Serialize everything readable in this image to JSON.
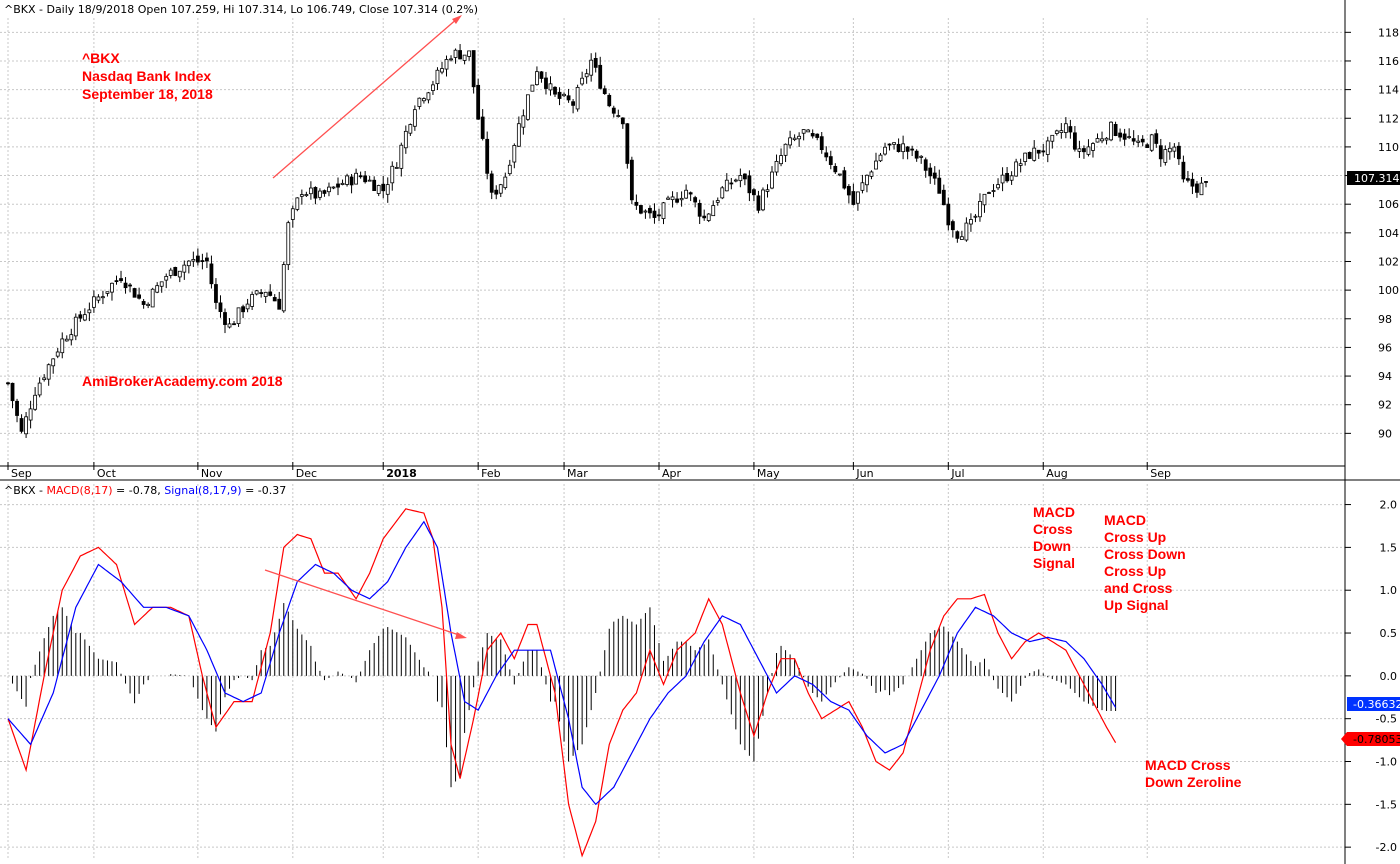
{
  "chart_data": [
    {
      "type": "candlestick",
      "header": "^BKX - Daily 18/9/2018 Open 107.259, Hi 107.314, Lo 106.749, Close 107.314 (0.2%)",
      "ylim": [
        88,
        119
      ],
      "yticks": [
        "90",
        "92",
        "94",
        "96",
        "98",
        "100",
        "102",
        "104",
        "106",
        "108",
        "110",
        "112",
        "114",
        "116",
        "118"
      ],
      "months": [
        {
          "label": "Sep",
          "day": 0
        },
        {
          "label": "Oct",
          "day": 19
        },
        {
          "label": "Nov",
          "day": 42
        },
        {
          "label": "Dec",
          "day": 63
        },
        {
          "label": "2018",
          "day": 83,
          "bold": true
        },
        {
          "label": "Feb",
          "day": 104
        },
        {
          "label": "Mar",
          "day": 123
        },
        {
          "label": "Apr",
          "day": 144
        },
        {
          "label": "May",
          "day": 165
        },
        {
          "label": "Jun",
          "day": 187
        },
        {
          "label": "Jul",
          "day": 208
        },
        {
          "label": "Aug",
          "day": 229
        },
        {
          "label": "Sep",
          "day": 252
        }
      ],
      "total_days": 266,
      "price_waypoints": [
        [
          0,
          93.5
        ],
        [
          3,
          90
        ],
        [
          6,
          93
        ],
        [
          12,
          96.5
        ],
        [
          17,
          98.5
        ],
        [
          21,
          99.8
        ],
        [
          25,
          101
        ],
        [
          30,
          99
        ],
        [
          35,
          101
        ],
        [
          40,
          102
        ],
        [
          44,
          102
        ],
        [
          46,
          99
        ],
        [
          49,
          97.5
        ],
        [
          53,
          99.2
        ],
        [
          57,
          100
        ],
        [
          60,
          99
        ],
        [
          62,
          104.5
        ],
        [
          65,
          107
        ],
        [
          69,
          106.5
        ],
        [
          74,
          107.5
        ],
        [
          78,
          108
        ],
        [
          83,
          107
        ],
        [
          86,
          109
        ],
        [
          90,
          113
        ],
        [
          94,
          114.5
        ],
        [
          98,
          116.5
        ],
        [
          102,
          116.5
        ],
        [
          104,
          112
        ],
        [
          107,
          106.5
        ],
        [
          110,
          108
        ],
        [
          113,
          111.5
        ],
        [
          117,
          115.5
        ],
        [
          121,
          113.5
        ],
        [
          125,
          113
        ],
        [
          129,
          116
        ],
        [
          133,
          113
        ],
        [
          136,
          112
        ],
        [
          138,
          106
        ],
        [
          143,
          105
        ],
        [
          146,
          106
        ],
        [
          150,
          107
        ],
        [
          154,
          105
        ],
        [
          158,
          107
        ],
        [
          162,
          108
        ],
        [
          166,
          106
        ],
        [
          169,
          108
        ],
        [
          172,
          110
        ],
        [
          176,
          111
        ],
        [
          180,
          110
        ],
        [
          184,
          108
        ],
        [
          187,
          106
        ],
        [
          190,
          108
        ],
        [
          194,
          110
        ],
        [
          198,
          110
        ],
        [
          202,
          109
        ],
        [
          206,
          107
        ],
        [
          208,
          105
        ],
        [
          210,
          104
        ],
        [
          213,
          104.5
        ],
        [
          217,
          107
        ],
        [
          221,
          108
        ],
        [
          226,
          109.5
        ],
        [
          230,
          110
        ],
        [
          234,
          111.5
        ],
        [
          237,
          109.5
        ],
        [
          241,
          110.5
        ],
        [
          244,
          111.3
        ],
        [
          247,
          110.8
        ],
        [
          250,
          110
        ],
        [
          253,
          110.5
        ],
        [
          255,
          109.5
        ],
        [
          258,
          110
        ],
        [
          260,
          107.5
        ],
        [
          263,
          107.2
        ],
        [
          265,
          107.3
        ]
      ],
      "last_close": "107.314",
      "annotations": [
        "^BKX",
        "Nasdaq Bank Index",
        "September 18, 2018",
        "AmiBrokerAcademy.com  2018"
      ]
    },
    {
      "type": "line",
      "header_prefix": "^BKX - ",
      "header_macd": "MACD(8,17)",
      "header_macd_val": " = -0.78, ",
      "header_signal": "Signal(8,17,9)",
      "header_signal_val": " = -0.37",
      "ylim": [
        -2.15,
        2.1
      ],
      "yticks": [
        "2.0",
        "1.5",
        "1.0",
        "0.5",
        "0.0",
        "-0.5",
        "-1.0",
        "-1.5",
        "-2.0"
      ],
      "series": [
        {
          "name": "MACD(8,17)",
          "color": "#ff0000",
          "waypoints": [
            [
              0,
              -0.5
            ],
            [
              4,
              -1.1
            ],
            [
              8,
              0
            ],
            [
              12,
              1.0
            ],
            [
              16,
              1.4
            ],
            [
              20,
              1.5
            ],
            [
              24,
              1.3
            ],
            [
              28,
              0.6
            ],
            [
              32,
              0.8
            ],
            [
              36,
              0.8
            ],
            [
              40,
              0.7
            ],
            [
              43,
              0
            ],
            [
              46,
              -0.6
            ],
            [
              50,
              -0.3
            ],
            [
              54,
              -0.3
            ],
            [
              58,
              0.5
            ],
            [
              61,
              1.5
            ],
            [
              64,
              1.65
            ],
            [
              67,
              1.6
            ],
            [
              70,
              1.2
            ],
            [
              73,
              1.2
            ],
            [
              77,
              0.9
            ],
            [
              80,
              1.2
            ],
            [
              83,
              1.6
            ],
            [
              88,
              1.95
            ],
            [
              92,
              1.9
            ],
            [
              94,
              1.6
            ],
            [
              96,
              0.8
            ],
            [
              98,
              -0.8
            ],
            [
              100,
              -1.2
            ],
            [
              103,
              -0.5
            ],
            [
              106,
              0.3
            ],
            [
              109,
              0.5
            ],
            [
              112,
              0.2
            ],
            [
              115,
              0.6
            ],
            [
              117,
              0.6
            ],
            [
              121,
              -0.2
            ],
            [
              124,
              -1.5
            ],
            [
              127,
              -2.1
            ],
            [
              130,
              -1.7
            ],
            [
              133,
              -0.8
            ],
            [
              136,
              -0.4
            ],
            [
              139,
              -0.2
            ],
            [
              142,
              0.3
            ],
            [
              145,
              -0.1
            ],
            [
              148,
              0.3
            ],
            [
              152,
              0.5
            ],
            [
              155,
              0.9
            ],
            [
              158,
              0.6
            ],
            [
              162,
              -0.2
            ],
            [
              165,
              -0.7
            ],
            [
              168,
              -0.2
            ],
            [
              171,
              0.2
            ],
            [
              174,
              0.2
            ],
            [
              177,
              -0.2
            ],
            [
              180,
              -0.5
            ],
            [
              183,
              -0.4
            ],
            [
              186,
              -0.3
            ],
            [
              189,
              -0.6
            ],
            [
              192,
              -1.0
            ],
            [
              195,
              -1.1
            ],
            [
              198,
              -0.9
            ],
            [
              201,
              -0.3
            ],
            [
              204,
              0.3
            ],
            [
              207,
              0.7
            ],
            [
              210,
              0.9
            ],
            [
              213,
              0.9
            ],
            [
              216,
              0.95
            ],
            [
              219,
              0.5
            ],
            [
              222,
              0.2
            ],
            [
              225,
              0.4
            ],
            [
              228,
              0.5
            ],
            [
              231,
              0.4
            ],
            [
              234,
              0.3
            ],
            [
              237,
              0
            ],
            [
              240,
              -0.3
            ],
            [
              243,
              -0.6
            ],
            [
              245,
              -0.78
            ]
          ]
        },
        {
          "name": "Signal(8,17,9)",
          "color": "#0000ff",
          "waypoints": [
            [
              0,
              -0.5
            ],
            [
              5,
              -0.8
            ],
            [
              10,
              -0.2
            ],
            [
              15,
              0.8
            ],
            [
              20,
              1.3
            ],
            [
              25,
              1.1
            ],
            [
              30,
              0.8
            ],
            [
              35,
              0.8
            ],
            [
              40,
              0.7
            ],
            [
              44,
              0.3
            ],
            [
              48,
              -0.2
            ],
            [
              52,
              -0.3
            ],
            [
              56,
              -0.2
            ],
            [
              60,
              0.5
            ],
            [
              64,
              1.1
            ],
            [
              68,
              1.3
            ],
            [
              72,
              1.2
            ],
            [
              76,
              1.0
            ],
            [
              80,
              0.9
            ],
            [
              84,
              1.1
            ],
            [
              88,
              1.5
            ],
            [
              92,
              1.8
            ],
            [
              95,
              1.5
            ],
            [
              98,
              0.5
            ],
            [
              101,
              -0.3
            ],
            [
              104,
              -0.4
            ],
            [
              108,
              0
            ],
            [
              112,
              0.3
            ],
            [
              116,
              0.3
            ],
            [
              120,
              0.3
            ],
            [
              124,
              -0.5
            ],
            [
              127,
              -1.3
            ],
            [
              130,
              -1.5
            ],
            [
              134,
              -1.3
            ],
            [
              138,
              -0.9
            ],
            [
              142,
              -0.5
            ],
            [
              146,
              -0.2
            ],
            [
              150,
              0
            ],
            [
              154,
              0.4
            ],
            [
              158,
              0.7
            ],
            [
              162,
              0.6
            ],
            [
              166,
              0.2
            ],
            [
              170,
              -0.2
            ],
            [
              174,
              0
            ],
            [
              178,
              -0.1
            ],
            [
              182,
              -0.3
            ],
            [
              186,
              -0.4
            ],
            [
              190,
              -0.7
            ],
            [
              194,
              -0.9
            ],
            [
              198,
              -0.8
            ],
            [
              202,
              -0.4
            ],
            [
              206,
              0
            ],
            [
              210,
              0.5
            ],
            [
              214,
              0.8
            ],
            [
              218,
              0.7
            ],
            [
              222,
              0.5
            ],
            [
              226,
              0.4
            ],
            [
              230,
              0.45
            ],
            [
              234,
              0.4
            ],
            [
              238,
              0.2
            ],
            [
              242,
              -0.1
            ],
            [
              245,
              -0.37
            ]
          ]
        }
      ],
      "histogram_from": "MACD minus Signal",
      "macd_value_label": "-0.78053",
      "signal_value_label": "-0.36632",
      "annotations": [
        {
          "id": "macd-cross-down-signal",
          "lines": [
            "MACD",
            "Cross",
            "Down",
            "Signal"
          ]
        },
        {
          "id": "macd-cross-up-down",
          "lines": [
            "MACD",
            "Cross Up",
            "Cross Down",
            "Cross Up",
            "and Cross",
            "Up Signal"
          ]
        },
        {
          "id": "macd-cross-down-zeroline",
          "lines": [
            "MACD Cross",
            "Down Zeroline"
          ]
        }
      ]
    }
  ],
  "colors": {
    "up_fill": "#ffffff",
    "down_fill": "#000000",
    "grid": "#c8c8c8",
    "macd": "#ff0000",
    "signal": "#0000ff",
    "annotation": "#ff0000",
    "hist": "#000000"
  }
}
